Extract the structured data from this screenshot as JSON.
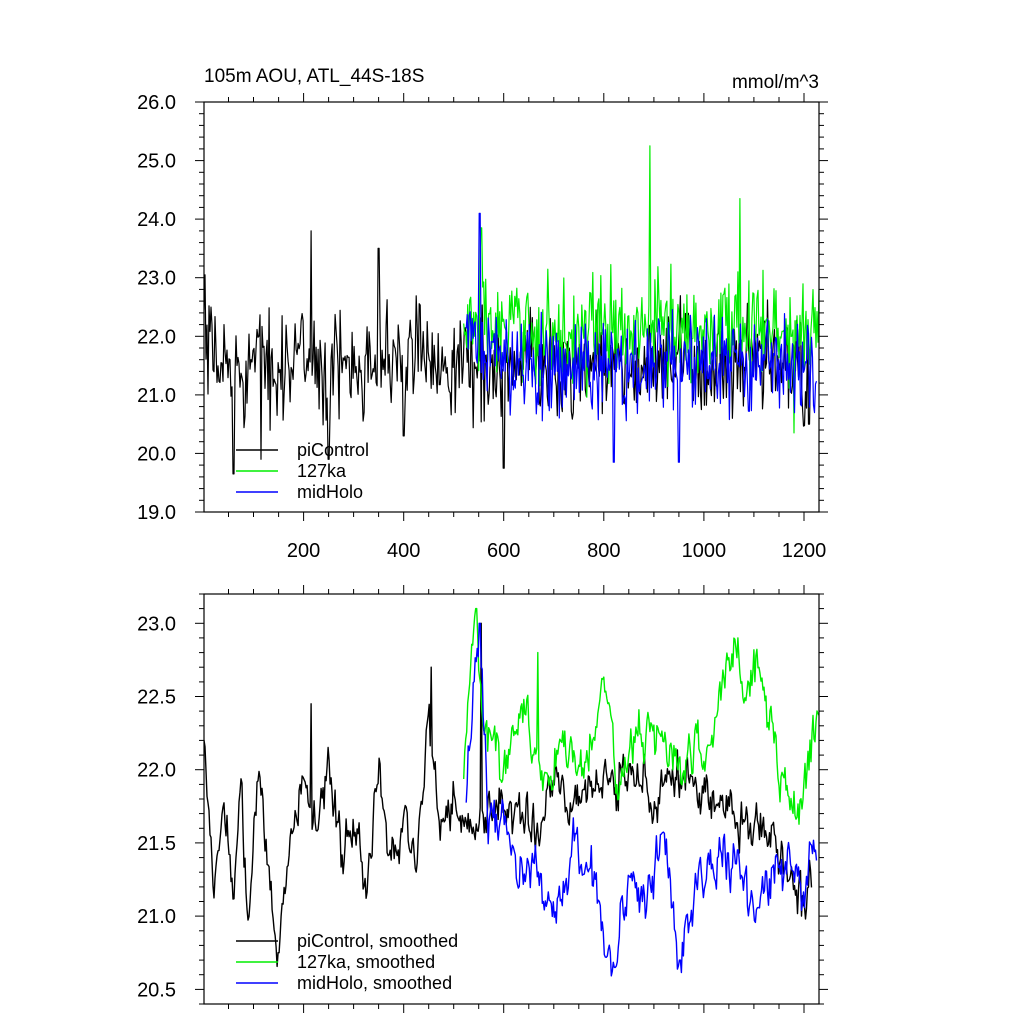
{
  "chart_data": [
    {
      "type": "line",
      "title": "105m AOU, ATL_44S-18S",
      "units": "mmol/m^3",
      "xlim": [
        1,
        1230
      ],
      "ylim": [
        19.0,
        26.0
      ],
      "xticks": [
        200,
        400,
        600,
        800,
        1000,
        1200
      ],
      "yticks": [
        19.0,
        20.0,
        21.0,
        22.0,
        23.0,
        24.0,
        25.0,
        26.0
      ],
      "xtick_labels": [
        "200",
        "400",
        "600",
        "800",
        "1000",
        "1200"
      ],
      "ytick_labels": [
        "19.0",
        "20.0",
        "21.0",
        "22.0",
        "23.0",
        "24.0",
        "25.0",
        "26.0"
      ],
      "legend_position": "bottom-left",
      "series": [
        {
          "name": "piControl",
          "color": "#000000",
          "x_start": 1,
          "x_end": 1215,
          "x": [
            1,
            60,
            110,
            150,
            220,
            240,
            300,
            340,
            400,
            420,
            460,
            480,
            505,
            520,
            560,
            600,
            650,
            700,
            750,
            800,
            850,
            900,
            950,
            1000,
            1050,
            1100,
            1150,
            1200,
            1215
          ],
          "y": [
            21.7,
            21.4,
            21.6,
            21.5,
            21.7,
            21.3,
            21.6,
            21.7,
            21.5,
            21.8,
            21.6,
            21.7,
            21.5,
            21.6,
            21.5,
            21.3,
            21.6,
            21.4,
            21.5,
            21.6,
            21.4,
            21.5,
            21.6,
            21.5,
            21.4,
            21.5,
            21.6,
            21.3,
            21.4
          ],
          "extremes": [
            {
              "x": 3,
              "y": 23.05
            },
            {
              "x": 60,
              "y": 19.65
            },
            {
              "x": 115,
              "y": 19.9
            },
            {
              "x": 215,
              "y": 23.8
            },
            {
              "x": 250,
              "y": 19.9
            },
            {
              "x": 350,
              "y": 23.5
            },
            {
              "x": 400,
              "y": 20.3
            },
            {
              "x": 600,
              "y": 19.75
            },
            {
              "x": 1210,
              "y": 20.5
            }
          ]
        },
        {
          "name": "127ka",
          "color": "#00ee00",
          "x_start": 520,
          "x_end": 1230,
          "x": [
            520,
            560,
            600,
            650,
            700,
            750,
            800,
            850,
            900,
            950,
            1000,
            1050,
            1100,
            1150,
            1200,
            1230
          ],
          "y": [
            22.1,
            22.3,
            22.0,
            22.2,
            22.0,
            22.1,
            22.2,
            22.0,
            22.3,
            22.1,
            22.1,
            22.3,
            22.2,
            22.0,
            22.1,
            22.4
          ],
          "extremes": [
            {
              "x": 555,
              "y": 23.85
            },
            {
              "x": 892,
              "y": 25.25
            },
            {
              "x": 1072,
              "y": 24.35
            },
            {
              "x": 1180,
              "y": 20.35
            }
          ]
        },
        {
          "name": "midHolo",
          "color": "#0000ff",
          "x_start": 525,
          "x_end": 1225,
          "x": [
            525,
            560,
            600,
            650,
            700,
            750,
            800,
            850,
            900,
            950,
            1000,
            1050,
            1100,
            1150,
            1200,
            1225
          ],
          "y": [
            21.8,
            21.9,
            21.5,
            21.6,
            21.5,
            21.3,
            21.6,
            21.4,
            21.5,
            21.4,
            21.6,
            21.5,
            21.4,
            21.6,
            21.5,
            21.3
          ],
          "extremes": [
            {
              "x": 552,
              "y": 24.1
            },
            {
              "x": 820,
              "y": 19.85
            },
            {
              "x": 950,
              "y": 19.85
            }
          ]
        }
      ]
    },
    {
      "type": "line",
      "xlim": [
        1,
        1230
      ],
      "ylim": [
        20.4,
        23.2
      ],
      "yticks": [
        20.5,
        21.0,
        21.5,
        22.0,
        22.5,
        23.0
      ],
      "ytick_labels": [
        "20.5",
        "21.0",
        "21.5",
        "22.0",
        "22.5",
        "23.0"
      ],
      "xticks": [
        200,
        400,
        600,
        800,
        1000,
        1200
      ],
      "legend_position": "bottom-left",
      "series": [
        {
          "name": "piControl, smoothed",
          "color": "#000000",
          "x_start": 1,
          "x_end": 1215,
          "x": [
            1,
            20,
            40,
            60,
            75,
            90,
            110,
            130,
            150,
            175,
            200,
            225,
            250,
            275,
            300,
            325,
            350,
            375,
            400,
            425,
            450,
            470,
            500,
            530,
            560,
            600,
            650,
            700,
            750,
            800,
            850,
            900,
            950,
            1000,
            1050,
            1100,
            1150,
            1200,
            1215
          ],
          "y": [
            22.25,
            21.1,
            21.8,
            21.2,
            21.9,
            21.0,
            22.0,
            21.3,
            20.75,
            21.6,
            21.9,
            21.5,
            22.1,
            21.4,
            21.7,
            21.2,
            22.0,
            21.4,
            21.6,
            21.5,
            22.4,
            21.6,
            21.8,
            21.5,
            21.7,
            21.8,
            21.6,
            21.9,
            21.8,
            21.9,
            22.0,
            21.8,
            22.0,
            21.9,
            21.7,
            21.6,
            21.5,
            21.1,
            21.25
          ],
          "extremes": [
            {
              "x": 150,
              "y": 20.75
            },
            {
              "x": 215,
              "y": 22.45
            },
            {
              "x": 455,
              "y": 22.7
            },
            {
              "x": 555,
              "y": 23.0
            },
            {
              "x": 1195,
              "y": 21.0
            }
          ]
        },
        {
          "name": "127ka, smoothed",
          "color": "#00ee00",
          "x_start": 520,
          "x_end": 1230,
          "x": [
            520,
            545,
            560,
            600,
            640,
            680,
            720,
            760,
            800,
            830,
            860,
            900,
            940,
            980,
            1020,
            1060,
            1080,
            1110,
            1150,
            1190,
            1230
          ],
          "y": [
            22.1,
            23.1,
            22.3,
            22.0,
            22.5,
            21.9,
            22.2,
            22.0,
            22.7,
            21.8,
            22.2,
            22.3,
            22.0,
            22.1,
            22.2,
            22.9,
            22.5,
            22.8,
            22.0,
            21.7,
            22.5
          ],
          "extremes": [
            {
              "x": 545,
              "y": 23.1
            },
            {
              "x": 668,
              "y": 22.8
            },
            {
              "x": 1068,
              "y": 22.9
            }
          ]
        },
        {
          "name": "midHolo, smoothed",
          "color": "#0000ff",
          "x_start": 525,
          "x_end": 1225,
          "x": [
            525,
            552,
            570,
            600,
            630,
            660,
            700,
            740,
            780,
            820,
            850,
            880,
            920,
            950,
            990,
            1030,
            1070,
            1110,
            1150,
            1200,
            1225
          ],
          "y": [
            21.9,
            23.0,
            21.6,
            21.7,
            21.2,
            21.4,
            21.0,
            21.5,
            21.2,
            20.65,
            21.3,
            21.1,
            21.6,
            20.7,
            21.2,
            21.5,
            21.3,
            21.1,
            21.4,
            21.2,
            21.5
          ],
          "extremes": [
            {
              "x": 552,
              "y": 23.0
            },
            {
              "x": 822,
              "y": 20.65
            },
            {
              "x": 952,
              "y": 20.7
            }
          ]
        }
      ]
    }
  ]
}
